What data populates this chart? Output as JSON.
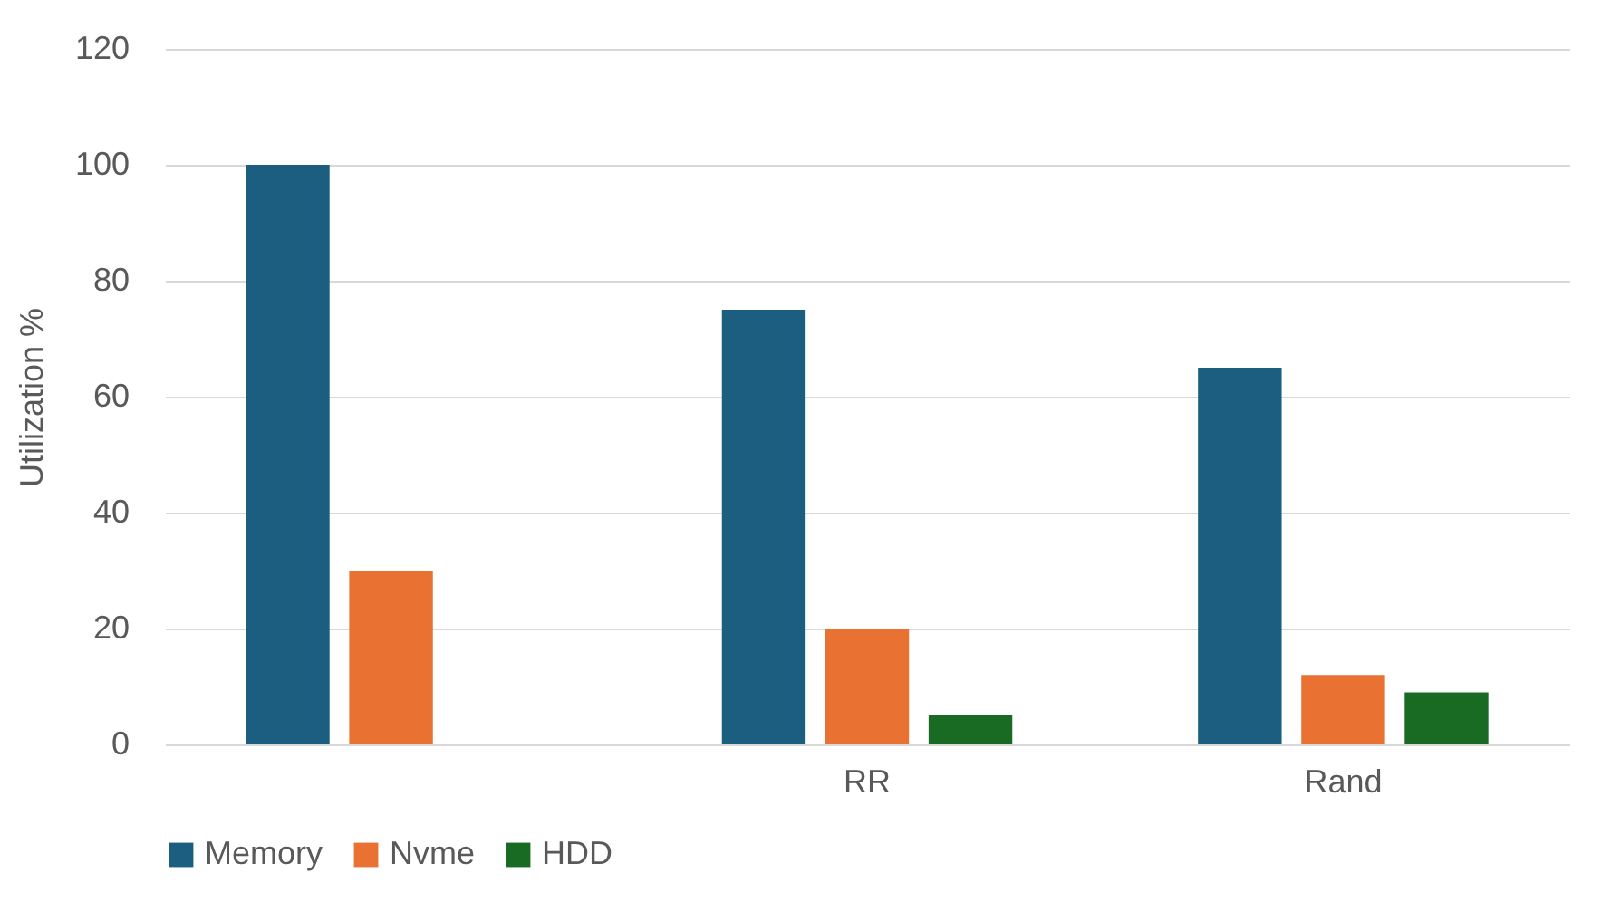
{
  "chart_data": {
    "type": "bar",
    "ylabel": "Utilization %",
    "categories": [
      null,
      "RR",
      "Rand"
    ],
    "series": [
      {
        "name": "Memory",
        "color": "#1b5e80",
        "values": [
          100,
          75,
          65
        ]
      },
      {
        "name": "Nvme",
        "color": "#e97132",
        "values": [
          30,
          20,
          12
        ]
      },
      {
        "name": "HDD",
        "color": "#196b24",
        "values": [
          null,
          5,
          9
        ]
      }
    ],
    "ylim": [
      0,
      120
    ],
    "yticks": [
      0,
      20,
      40,
      60,
      80,
      100,
      120
    ],
    "grid": "y",
    "legend": "bottom"
  }
}
